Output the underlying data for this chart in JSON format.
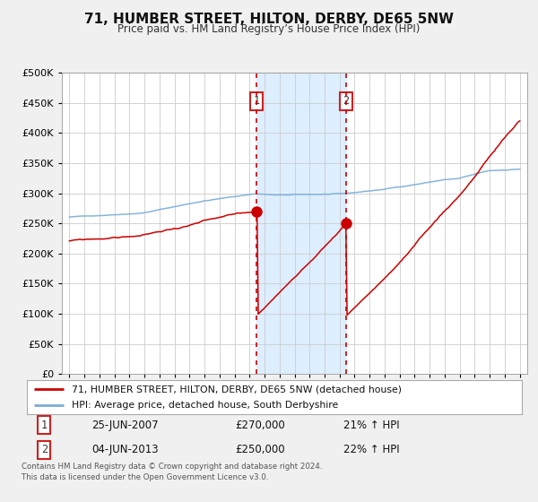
{
  "title": "71, HUMBER STREET, HILTON, DERBY, DE65 5NW",
  "subtitle": "Price paid vs. HM Land Registry’s House Price Index (HPI)",
  "red_label": "71, HUMBER STREET, HILTON, DERBY, DE65 5NW (detached house)",
  "blue_label": "HPI: Average price, detached house, South Derbyshire",
  "red_color": "#cc0000",
  "blue_color": "#7aadd4",
  "shaded_color": "#ddeeff",
  "annotation1": {
    "label": "1",
    "date": "25-JUN-2007",
    "price": "£270,000",
    "pct": "21% ↑ HPI",
    "x_year": 2007.48,
    "y_val": 270000
  },
  "annotation2": {
    "label": "2",
    "date": "04-JUN-2013",
    "price": "£250,000",
    "pct": "22% ↑ HPI",
    "x_year": 2013.42,
    "y_val": 250000
  },
  "ylim": [
    0,
    500000
  ],
  "yticks": [
    0,
    50000,
    100000,
    150000,
    200000,
    250000,
    300000,
    350000,
    400000,
    450000,
    500000
  ],
  "xlim": [
    1994.5,
    2025.5
  ],
  "xticks": [
    1995,
    1996,
    1997,
    1998,
    1999,
    2000,
    2001,
    2002,
    2003,
    2004,
    2005,
    2006,
    2007,
    2008,
    2009,
    2010,
    2011,
    2012,
    2013,
    2014,
    2015,
    2016,
    2017,
    2018,
    2019,
    2020,
    2021,
    2022,
    2023,
    2024,
    2025
  ],
  "footer": "Contains HM Land Registry data © Crown copyright and database right 2024.\nThis data is licensed under the Open Government Licence v3.0.",
  "plot_bg_color": "#ffffff",
  "fig_bg_color": "#f0f0f0"
}
